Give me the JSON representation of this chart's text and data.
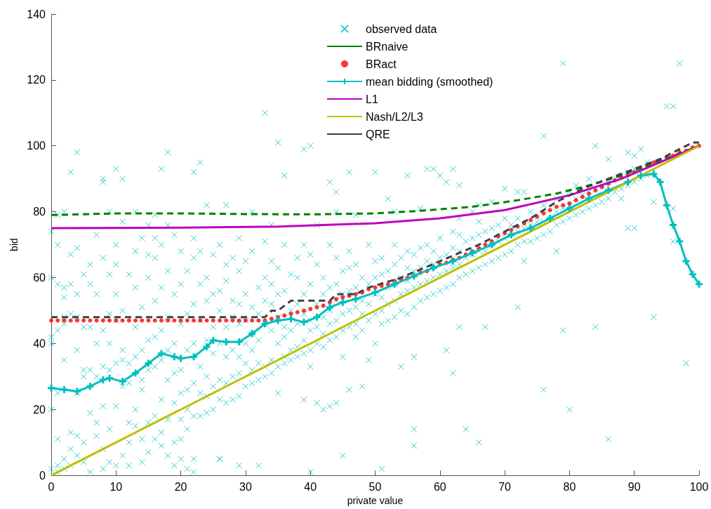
{
  "chart_data": {
    "type": "line",
    "xlabel": "private value",
    "ylabel": "bid",
    "xlim": [
      0,
      100
    ],
    "xticks": [
      0,
      10,
      20,
      30,
      40,
      50,
      60,
      70,
      80,
      90,
      100
    ],
    "ylim": [
      0,
      140
    ],
    "yticks": [
      0,
      20,
      40,
      60,
      80,
      100,
      120,
      140
    ],
    "grid": false,
    "legend": "top",
    "series": [
      {
        "name": "observed data",
        "type": "scatter",
        "marker": "cross",
        "color": "#00bfbf",
        "x": [
          0,
          0,
          0,
          0,
          0,
          0,
          1,
          1,
          1,
          1,
          1,
          1,
          1,
          2,
          2,
          2,
          2,
          2,
          2,
          2,
          3,
          3,
          3,
          3,
          3,
          3,
          4,
          4,
          4,
          4,
          4,
          4,
          4,
          5,
          5,
          5,
          5,
          5,
          5,
          6,
          6,
          6,
          6,
          6,
          6,
          7,
          7,
          7,
          7,
          7,
          7,
          8,
          8,
          8,
          8,
          8,
          8,
          9,
          9,
          9,
          9,
          9,
          9,
          10,
          10,
          10,
          10,
          10,
          10,
          10,
          11,
          11,
          11,
          11,
          11,
          11,
          12,
          12,
          12,
          12,
          12,
          13,
          13,
          13,
          13,
          13,
          13,
          14,
          14,
          14,
          14,
          14,
          14,
          14,
          15,
          15,
          15,
          15,
          15,
          15,
          15,
          16,
          16,
          16,
          16,
          16,
          16,
          16,
          17,
          17,
          17,
          17,
          17,
          17,
          17,
          18,
          18,
          18,
          18,
          18,
          18,
          18,
          19,
          19,
          19,
          19,
          19,
          19,
          19,
          20,
          20,
          20,
          20,
          20,
          20,
          20,
          21,
          21,
          21,
          21,
          21,
          21,
          22,
          22,
          22,
          22,
          22,
          22,
          22,
          23,
          23,
          23,
          23,
          23,
          23,
          24,
          24,
          24,
          24,
          24,
          24,
          25,
          25,
          25,
          25,
          25,
          25,
          26,
          26,
          26,
          26,
          26,
          26,
          26,
          27,
          27,
          27,
          27,
          27,
          27,
          28,
          28,
          28,
          28,
          28,
          28,
          29,
          29,
          29,
          29,
          29,
          29,
          29,
          30,
          30,
          30,
          30,
          30,
          30,
          31,
          31,
          31,
          31,
          31,
          31,
          31,
          32,
          32,
          32,
          32,
          32,
          32,
          33,
          33,
          33,
          33,
          33,
          33,
          34,
          34,
          34,
          34,
          34,
          34,
          34,
          35,
          35,
          35,
          35,
          35,
          35,
          36,
          36,
          36,
          36,
          36,
          36,
          37,
          37,
          37,
          37,
          37,
          38,
          38,
          38,
          38,
          38,
          38,
          39,
          39,
          39,
          39,
          39,
          39,
          40,
          40,
          40,
          40,
          40,
          40,
          41,
          41,
          41,
          41,
          41,
          42,
          42,
          42,
          42,
          42,
          42,
          43,
          43,
          43,
          43,
          43,
          43,
          44,
          44,
          44,
          44,
          44,
          44,
          45,
          45,
          45,
          45,
          45,
          46,
          46,
          46,
          46,
          46,
          46,
          47,
          47,
          47,
          47,
          47,
          48,
          48,
          48,
          48,
          48,
          49,
          49,
          49,
          49,
          49,
          50,
          50,
          50,
          50,
          50,
          51,
          51,
          51,
          51,
          51,
          52,
          52,
          52,
          52,
          53,
          53,
          53,
          53,
          53,
          54,
          54,
          54,
          54,
          55,
          55,
          55,
          55,
          55,
          56,
          56,
          56,
          56,
          57,
          57,
          57,
          57,
          58,
          58,
          58,
          58,
          59,
          59,
          59,
          59,
          60,
          60,
          60,
          60,
          61,
          61,
          61,
          62,
          62,
          62,
          62,
          63,
          63,
          63,
          63,
          64,
          64,
          64,
          65,
          65,
          65,
          66,
          66,
          66,
          66,
          67,
          67,
          67,
          68,
          68,
          68,
          69,
          69,
          69,
          70,
          70,
          70,
          71,
          71,
          71,
          72,
          72,
          72,
          72,
          73,
          73,
          73,
          74,
          74,
          74,
          75,
          75,
          76,
          76,
          76,
          77,
          77,
          78,
          78,
          78,
          78,
          79,
          79,
          80,
          80,
          80,
          81,
          81,
          82,
          82,
          83,
          83,
          84,
          84,
          85,
          85,
          86,
          86,
          87,
          87,
          88,
          88,
          89,
          89,
          90,
          90,
          90,
          91,
          92,
          92,
          33,
          35,
          4,
          18,
          39,
          40,
          3,
          8,
          8,
          10,
          11,
          22,
          23,
          17,
          36,
          43,
          46,
          44,
          50,
          55,
          58,
          59,
          60,
          62,
          61,
          63,
          76,
          79,
          95,
          96,
          97,
          84,
          89,
          91,
          86,
          81,
          83,
          88,
          90,
          93,
          96,
          96,
          93,
          98,
          79,
          80,
          76,
          84,
          86,
          89,
          1,
          2,
          9,
          13,
          16,
          24,
          27,
          41,
          44,
          47,
          52,
          53,
          57,
          63,
          65,
          66,
          68,
          70,
          72,
          73,
          45,
          51,
          56,
          56,
          64,
          66,
          40,
          26,
          29,
          21,
          22,
          20,
          12,
          62,
          63,
          67,
          61,
          56,
          54
        ],
        "values": [
          2,
          20,
          40,
          42,
          60,
          74,
          1,
          3,
          11,
          25,
          44,
          58,
          70,
          5,
          2,
          35,
          46,
          48,
          54,
          57,
          8,
          3,
          13,
          49,
          58,
          67,
          12,
          6,
          25,
          38,
          48,
          55,
          69,
          4,
          10,
          30,
          32,
          45,
          61,
          1,
          19,
          32,
          45,
          58,
          64,
          12,
          16,
          30,
          40,
          55,
          73,
          2,
          8,
          21,
          33,
          44,
          66,
          4,
          14,
          32,
          40,
          49,
          61,
          3,
          21,
          34,
          47,
          55,
          64,
          70,
          6,
          27,
          35,
          38,
          50,
          77,
          10,
          16,
          28,
          34,
          61,
          15,
          20,
          36,
          45,
          57,
          68,
          4,
          11,
          26,
          29,
          38,
          51,
          72,
          7,
          16,
          32,
          41,
          60,
          67,
          76,
          11,
          18,
          33,
          42,
          53,
          66,
          72,
          9,
          13,
          23,
          35,
          44,
          57,
          70,
          6,
          17,
          29,
          38,
          48,
          62,
          76,
          3,
          10,
          22,
          31,
          40,
          55,
          73,
          11,
          17,
          25,
          32,
          46,
          58,
          68,
          14,
          20,
          26,
          38,
          49,
          62,
          5,
          18,
          28,
          40,
          52,
          66,
          72,
          18,
          25,
          33,
          47,
          58,
          68,
          19,
          24,
          30,
          41,
          53,
          60,
          20,
          27,
          37,
          45,
          55,
          67,
          5,
          23,
          29,
          40,
          50,
          56,
          70,
          22,
          28,
          36,
          45,
          59,
          64,
          23,
          30,
          38,
          48,
          53,
          66,
          24,
          31,
          36,
          46,
          52,
          62,
          72,
          27,
          34,
          40,
          47,
          55,
          65,
          28,
          32,
          38,
          43,
          51,
          68,
          80,
          3,
          29,
          34,
          41,
          49,
          57,
          30,
          33,
          46,
          53,
          60,
          71,
          31,
          35,
          44,
          52,
          58,
          65,
          76,
          25,
          33,
          40,
          48,
          55,
          63,
          34,
          36,
          42,
          45,
          56,
          70,
          35,
          38,
          44,
          50,
          61,
          36,
          39,
          46,
          52,
          60,
          66,
          23,
          37,
          41,
          49,
          55,
          70,
          33,
          38,
          44,
          47,
          58,
          67,
          22,
          40,
          45,
          52,
          64,
          20,
          39,
          43,
          48,
          55,
          60,
          21,
          41,
          46,
          50,
          57,
          70,
          22,
          42,
          47,
          53,
          58,
          66,
          36,
          44,
          49,
          55,
          62,
          26,
          45,
          50,
          56,
          63,
          68,
          42,
          46,
          51,
          57,
          64,
          27,
          44,
          49,
          53,
          60,
          35,
          47,
          52,
          58,
          70,
          40,
          49,
          55,
          60,
          65,
          46,
          50,
          54,
          61,
          66,
          47,
          52,
          57,
          62,
          48,
          53,
          58,
          64,
          70,
          50,
          55,
          60,
          66,
          49,
          56,
          59,
          63,
          68,
          51,
          57,
          62,
          67,
          53,
          58,
          63,
          69,
          54,
          59,
          65,
          70,
          55,
          60,
          64,
          68,
          56,
          61,
          66,
          72,
          57,
          62,
          67,
          58,
          63,
          69,
          74,
          60,
          64,
          68,
          73,
          61,
          66,
          71,
          62,
          67,
          72,
          63,
          68,
          73,
          77,
          64,
          68,
          74,
          65,
          70,
          75,
          66,
          71,
          76,
          67,
          72,
          78,
          68,
          73,
          76,
          51,
          70,
          74,
          78,
          65,
          71,
          75,
          71,
          76,
          80,
          72,
          77,
          73,
          77,
          82,
          74,
          78,
          68,
          76,
          80,
          84,
          77,
          81,
          78,
          82,
          86,
          79,
          84,
          80,
          85,
          81,
          86,
          82,
          87,
          83,
          88,
          84,
          89,
          86,
          90,
          87,
          91,
          88,
          92,
          89,
          93,
          97,
          90,
          91,
          95,
          110,
          101,
          98,
          98,
          99,
          100,
          92,
          90,
          89,
          93,
          90,
          92,
          95,
          93,
          91,
          89,
          92,
          86,
          92,
          91,
          93,
          93,
          91,
          93,
          89,
          88,
          103,
          125,
          112,
          112,
          125,
          100,
          98,
          99,
          96,
          88,
          90,
          84,
          75,
          83,
          81,
          71,
          48,
          34,
          44,
          20,
          26,
          45,
          11,
          75,
          79,
          80,
          80,
          80,
          79,
          82,
          82,
          76,
          80,
          79,
          84,
          80,
          81,
          78,
          80,
          82,
          83,
          87,
          86,
          86,
          6,
          2,
          9,
          14,
          14,
          10,
          1,
          5,
          3,
          2,
          1,
          5,
          3,
          31,
          45,
          45,
          38,
          36,
          33
        ]
      },
      {
        "name": "BRnaive",
        "marker": "none",
        "line_style": "dashed",
        "color": "#008000",
        "x": [
          0,
          10,
          20,
          30,
          40,
          50,
          57,
          65,
          72,
          78,
          83,
          88,
          92,
          96,
          100
        ],
        "values": [
          79,
          79.5,
          79.5,
          79.3,
          79.2,
          79.5,
          80.3,
          81.5,
          83.5,
          85.5,
          88,
          91,
          94,
          97,
          100
        ]
      },
      {
        "name": "BRact",
        "type": "scatter",
        "marker": "circle",
        "color": "#ff0000",
        "x": [
          0,
          1,
          2,
          3,
          4,
          5,
          6,
          7,
          8,
          9,
          10,
          11,
          12,
          13,
          14,
          15,
          16,
          17,
          18,
          19,
          20,
          21,
          22,
          23,
          24,
          25,
          26,
          27,
          28,
          29,
          30,
          31,
          32,
          33,
          34,
          35,
          36,
          37,
          38,
          39,
          40,
          41,
          42,
          43,
          44,
          45,
          46,
          47,
          48,
          49,
          50,
          51,
          52,
          53,
          54,
          55,
          56,
          57,
          58,
          59,
          60,
          61,
          62,
          63,
          64,
          65,
          66,
          67,
          68,
          69,
          70,
          71,
          72,
          73,
          74,
          75,
          76,
          77,
          78,
          79,
          80,
          81,
          82,
          83,
          84,
          85,
          86,
          87,
          88,
          89,
          90,
          91,
          92,
          93,
          94,
          95,
          96,
          97,
          98,
          99,
          100
        ],
        "values": [
          47,
          47,
          47,
          47,
          47,
          47,
          47,
          47,
          47,
          47,
          47,
          47,
          47,
          47,
          47,
          47,
          47,
          47,
          47,
          47,
          47,
          47,
          47,
          47,
          47,
          47,
          47,
          47,
          47,
          47,
          47,
          47,
          47,
          47,
          47.5,
          48,
          48.5,
          49,
          49.5,
          50,
          50.5,
          51,
          51.5,
          52.5,
          53.5,
          54,
          54.5,
          55,
          55.5,
          56.5,
          57,
          57.5,
          58,
          59,
          59.5,
          60,
          60.5,
          61.5,
          62,
          63,
          64,
          64.5,
          65.5,
          66,
          67,
          68,
          69,
          70,
          71,
          72.5,
          73.5,
          74.5,
          75.5,
          76.5,
          77.5,
          78.5,
          79.5,
          80.5,
          81.5,
          82,
          82.5,
          83.5,
          84.5,
          85.5,
          86.5,
          87.5,
          88.5,
          89.5,
          90.5,
          91,
          92,
          93,
          94,
          95,
          95.5,
          96.5,
          97,
          98,
          98.5,
          99.5,
          100
        ]
      },
      {
        "name": "mean bidding (smoothed)",
        "marker": "cross",
        "color": "#00bfbf",
        "x": [
          0,
          2,
          4,
          6,
          8,
          9,
          11,
          13,
          15,
          17,
          19,
          20,
          22,
          24,
          25,
          27,
          29,
          31,
          33,
          35,
          37,
          39,
          41,
          43,
          45,
          47,
          50,
          53,
          56,
          59,
          62,
          65,
          68,
          71,
          74,
          77,
          80,
          83,
          86,
          89,
          91,
          93,
          94,
          95,
          96,
          97,
          98,
          99,
          100
        ],
        "values": [
          26.5,
          26,
          25.5,
          27,
          29,
          29.5,
          28.5,
          31,
          34,
          37,
          36,
          35.5,
          36,
          39,
          41,
          40.5,
          40.5,
          43,
          46,
          47,
          47.5,
          46.5,
          48,
          51,
          52.5,
          53.5,
          55.5,
          58,
          60.5,
          63,
          65,
          67.5,
          70,
          73,
          75,
          78,
          81,
          84,
          86.5,
          89,
          91,
          91.5,
          89,
          82,
          76,
          71,
          65,
          61,
          58
        ]
      },
      {
        "name": "L1",
        "marker": "none",
        "color": "#bf00bf",
        "x": [
          0,
          20,
          35,
          50,
          60,
          70,
          80,
          88,
          94,
          100
        ],
        "values": [
          75,
          75.2,
          75.5,
          76.5,
          78,
          80.5,
          85,
          90,
          95,
          100
        ]
      },
      {
        "name": "Nash/L2/L3",
        "marker": "none",
        "color": "#bfbf00",
        "x": [
          0,
          100
        ],
        "values": [
          0,
          100
        ]
      },
      {
        "name": "QRE",
        "marker": "none",
        "line_style": "dashed",
        "color": "#404040",
        "x": [
          0,
          33,
          34,
          35,
          37,
          43,
          44,
          47,
          49,
          54,
          60,
          66,
          70,
          74,
          78,
          82,
          86,
          90,
          94,
          97,
          99,
          100
        ],
        "values": [
          48,
          48,
          50,
          50,
          53,
          53,
          55,
          55,
          57,
          60,
          65,
          70,
          74,
          78,
          83,
          87,
          90,
          93,
          96,
          99,
          101,
          101
        ]
      }
    ]
  }
}
